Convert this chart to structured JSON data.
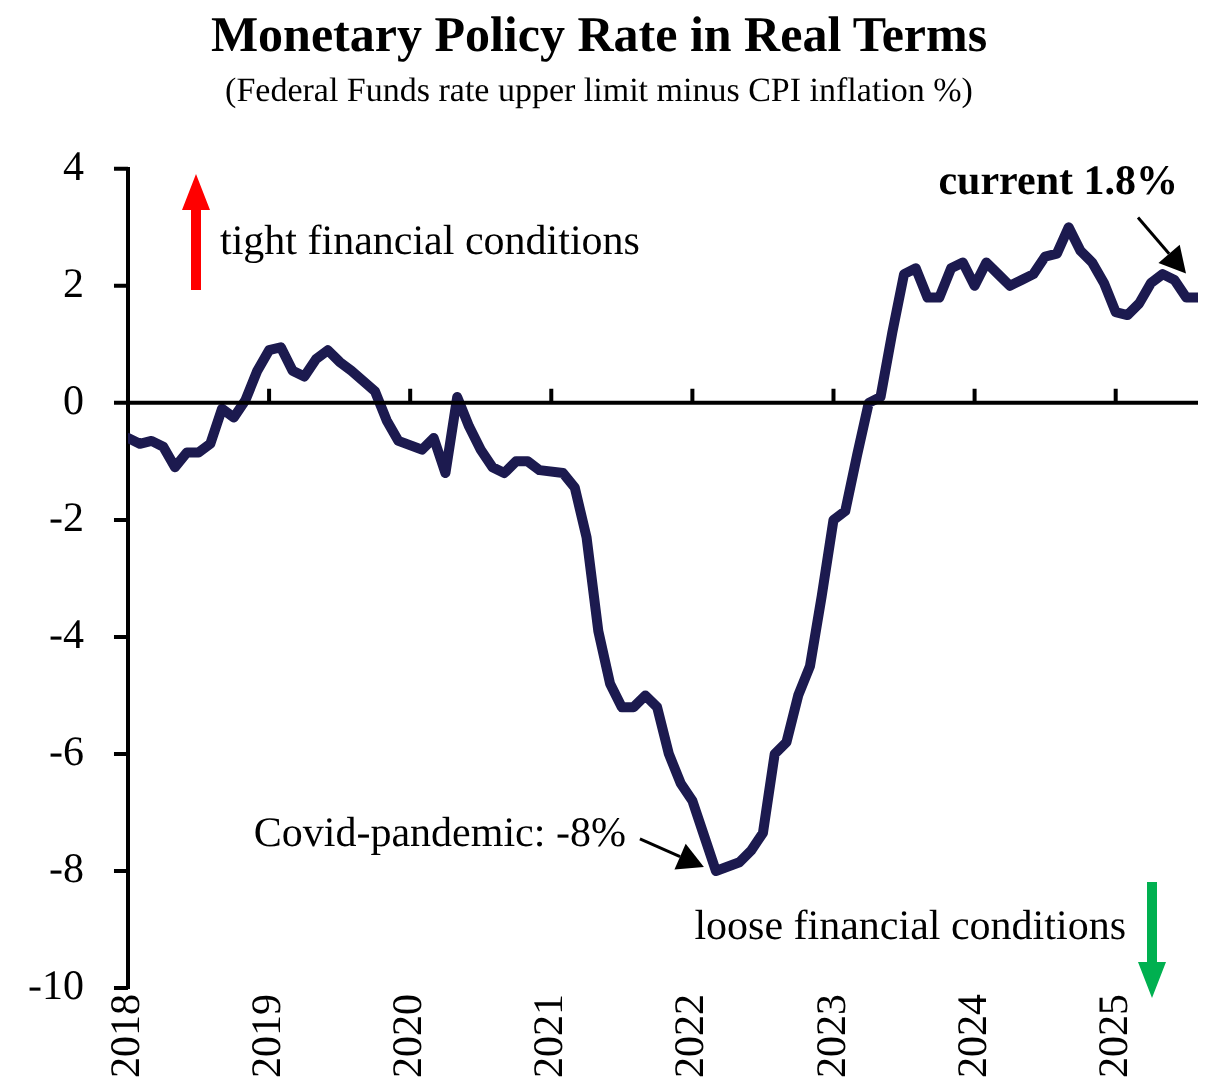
{
  "chart_data": {
    "type": "line",
    "title": "Monetary Policy Rate in Real Terms",
    "subtitle": "(Federal Funds rate upper limit minus CPI inflation %)",
    "x": [
      "2018-01",
      "2018-02",
      "2018-03",
      "2018-04",
      "2018-05",
      "2018-06",
      "2018-07",
      "2018-08",
      "2018-09",
      "2018-10",
      "2018-11",
      "2018-12",
      "2019-01",
      "2019-02",
      "2019-03",
      "2019-04",
      "2019-05",
      "2019-06",
      "2019-07",
      "2019-08",
      "2019-10",
      "2019-11",
      "2019-12",
      "2020-02",
      "2020-03",
      "2020-04",
      "2020-05",
      "2020-06",
      "2020-07",
      "2020-08",
      "2020-09",
      "2020-10",
      "2020-11",
      "2020-12",
      "2021-02",
      "2021-03",
      "2021-04",
      "2021-05",
      "2021-06",
      "2021-07",
      "2021-08",
      "2021-09",
      "2021-10",
      "2021-11",
      "2021-12",
      "2022-01",
      "2022-02",
      "2022-03",
      "2022-05",
      "2022-06",
      "2022-07",
      "2022-08",
      "2022-09",
      "2022-10",
      "2022-11",
      "2022-12",
      "2023-01",
      "2023-02",
      "2023-03",
      "2023-04",
      "2023-05",
      "2023-06",
      "2023-07",
      "2023-08",
      "2023-09",
      "2023-10",
      "2023-11",
      "2023-12",
      "2024-01",
      "2024-02",
      "2024-03",
      "2024-04",
      "2024-05",
      "2024-06",
      "2024-07",
      "2024-08",
      "2024-09",
      "2024-10",
      "2024-11",
      "2024-12",
      "2025-01",
      "2025-02",
      "2025-03",
      "2025-04",
      "2025-05",
      "2025-06",
      "2025-07",
      "2025-08"
    ],
    "series": [
      {
        "color": "#1c1a4f",
        "values": [
          -0.6,
          -0.7,
          -0.65,
          -0.75,
          -1.1,
          -0.85,
          -0.85,
          -0.7,
          -0.1,
          -0.25,
          0.05,
          0.55,
          0.9,
          0.95,
          0.55,
          0.45,
          0.75,
          0.9,
          0.7,
          0.55,
          0.2,
          -0.3,
          -0.65,
          -0.8,
          -0.6,
          -1.2,
          0.1,
          -0.4,
          -0.8,
          -1.1,
          -1.2,
          -1.0,
          -1.0,
          -1.15,
          -1.2,
          -1.45,
          -2.3,
          -3.9,
          -4.8,
          -5.2,
          -5.2,
          -5.0,
          -5.2,
          -6.0,
          -6.5,
          -6.8,
          -7.4,
          -8.0,
          -7.85,
          -7.65,
          -7.35,
          -6.0,
          -5.8,
          -5.0,
          -4.5,
          -3.3,
          -2.0,
          -1.85,
          -0.9,
          0.0,
          0.1,
          1.2,
          2.2,
          2.3,
          1.8,
          1.8,
          2.3,
          2.4,
          2.0,
          2.4,
          2.2,
          2.0,
          2.1,
          2.2,
          2.5,
          2.55,
          3.0,
          2.6,
          2.4,
          2.05,
          1.55,
          1.5,
          1.7,
          2.05,
          2.2,
          2.1,
          1.8,
          1.8
        ]
      }
    ],
    "xlim": [
      "2018-01",
      "2025-08"
    ],
    "xticks": [
      "2018",
      "2019",
      "2020",
      "2021",
      "2022",
      "2023",
      "2024",
      "2025"
    ],
    "ylim": [
      -10,
      4
    ],
    "yticks": [
      -10,
      -8,
      -6,
      -4,
      -2,
      0,
      2,
      4
    ],
    "grid": false,
    "ref_lines": [
      {
        "axis": "y",
        "value": 0,
        "color": "#000000"
      }
    ],
    "legend": false,
    "marker": "none",
    "line_style": "solid",
    "annotations": [
      "tight financial conditions",
      "loose financial conditions",
      {
        "text": "current 1.8%",
        "x": "2025-08",
        "y": 1.8
      },
      {
        "text": "Covid-pandemic: -8%",
        "x": "2022-03",
        "y": -8
      }
    ]
  }
}
